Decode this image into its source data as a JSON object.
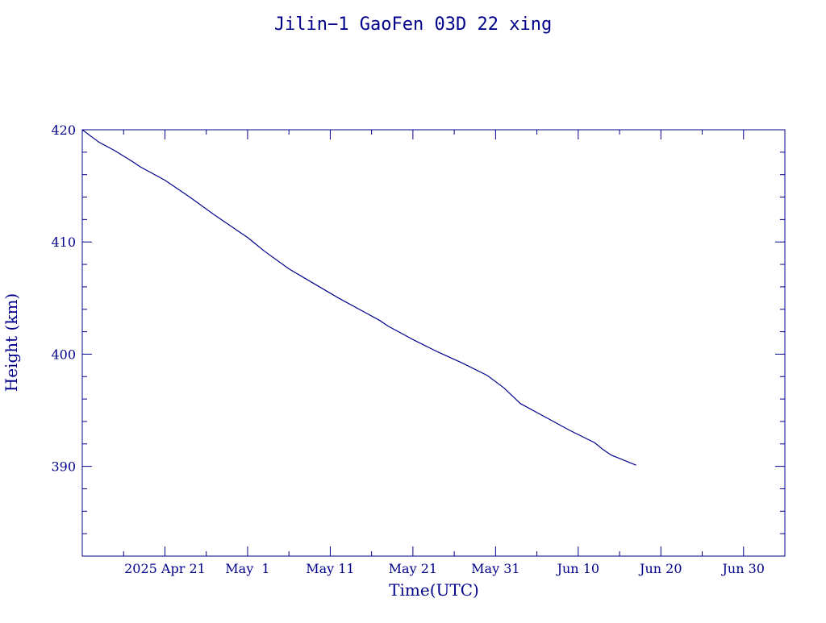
{
  "colors": {
    "axis": "#00008b",
    "line": "#00008b",
    "text": "#00008b",
    "background": "#ffffff"
  },
  "chart_data": {
    "type": "line",
    "title": "Jilin−1 GaoFen 03D 22 xing",
    "xlabel": "Time(UTC)",
    "ylabel": "Height (km)",
    "grid": false,
    "legend": "none",
    "xlim": [
      "2025-04-11",
      "2025-07-05"
    ],
    "ylim": [
      382,
      420
    ],
    "x_ticks": [
      {
        "date": "2025-04-21",
        "label": "2025 Apr 21"
      },
      {
        "date": "2025-05-01",
        "label": "May  1"
      },
      {
        "date": "2025-05-11",
        "label": "May 11"
      },
      {
        "date": "2025-05-21",
        "label": "May 21"
      },
      {
        "date": "2025-05-31",
        "label": "May 31"
      },
      {
        "date": "2025-06-10",
        "label": "Jun 10"
      },
      {
        "date": "2025-06-20",
        "label": "Jun 20"
      },
      {
        "date": "2025-06-30",
        "label": "Jun 30"
      }
    ],
    "y_ticks": [
      390,
      400,
      410,
      420
    ],
    "series": [
      {
        "x": [
          "2025-04-11",
          "2025-04-13",
          "2025-04-15",
          "2025-04-17",
          "2025-04-18",
          "2025-04-21",
          "2025-04-24",
          "2025-04-27",
          "2025-04-30",
          "2025-05-01",
          "2025-05-02",
          "2025-05-03",
          "2025-05-06",
          "2025-05-09",
          "2025-05-12",
          "2025-05-15",
          "2025-05-17",
          "2025-05-18",
          "2025-05-21",
          "2025-05-24",
          "2025-05-27",
          "2025-05-30",
          "2025-06-01",
          "2025-06-03",
          "2025-06-06",
          "2025-06-09",
          "2025-06-12",
          "2025-06-13",
          "2025-06-14",
          "2025-06-17"
        ],
        "y": [
          420.0,
          418.9,
          418.1,
          417.2,
          416.7,
          415.5,
          414.0,
          412.4,
          410.9,
          410.4,
          409.8,
          409.2,
          407.6,
          406.3,
          405.0,
          403.8,
          403.0,
          402.5,
          401.3,
          400.2,
          399.2,
          398.1,
          397.0,
          395.6,
          394.4,
          393.2,
          392.1,
          391.5,
          391.0,
          390.1
        ]
      }
    ]
  }
}
